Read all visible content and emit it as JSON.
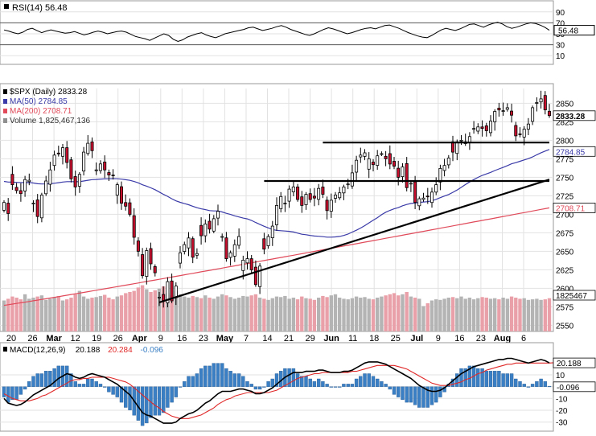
{
  "chart_data": [
    {
      "type": "line",
      "panel": "rsi",
      "legend": "RSI(14) 56.48",
      "indicator_name": "RSI(14)",
      "current_value": 56.48,
      "current_label": "56.48",
      "ylim": [
        0,
        100
      ],
      "yticks": [
        10,
        30,
        50,
        70,
        90
      ],
      "overbought": 70,
      "oversold": 30,
      "series": [
        {
          "values": [
            57,
            55,
            52,
            50,
            53,
            58,
            60,
            56,
            52,
            55,
            57,
            55,
            53,
            51,
            52,
            54,
            51,
            48,
            50,
            53,
            55,
            53,
            50,
            52,
            54,
            55,
            53,
            49,
            45,
            43,
            41,
            38,
            42,
            46,
            50,
            47,
            40,
            36,
            39,
            44,
            47,
            50,
            52,
            48,
            45,
            43,
            46,
            50,
            52,
            54,
            56,
            58,
            61,
            62,
            59,
            56,
            58,
            60,
            63,
            65,
            62,
            58,
            55,
            52,
            49,
            47,
            50,
            54,
            58,
            61,
            59,
            56,
            53,
            50,
            52,
            55,
            58,
            60,
            61,
            59,
            62,
            65,
            66,
            63,
            60,
            56,
            52,
            49,
            46,
            44,
            43,
            47,
            52,
            57,
            60,
            58,
            56,
            59,
            63,
            67,
            68,
            65,
            62,
            66,
            69,
            71,
            68,
            63,
            60,
            62,
            65,
            68,
            70,
            69,
            66,
            62,
            56.48
          ]
        }
      ]
    },
    {
      "type": "candlestick",
      "panel": "price",
      "legend": [
        {
          "label": "$SPX (Daily) 2833.28",
          "color": "#000000"
        },
        {
          "label": "MA(50) 2784.85",
          "color": "#3a3aa8"
        },
        {
          "label": "MA(200) 2708.71",
          "color": "#e04a5a"
        },
        {
          "label": "Volume 1,825,467,136",
          "color": "#8f8f8f"
        }
      ],
      "ylim": [
        2545,
        2870
      ],
      "yticks": [
        2550,
        2575,
        2600,
        2625,
        2650,
        2675,
        2700,
        2725,
        2750,
        2775,
        2800,
        2825,
        2850
      ],
      "last_price": "2833.28",
      "ma50_label": "2784.85",
      "ma200_label": "2708.71",
      "volume_label": "1825467",
      "x_tick_labels": [
        {
          "label": "20",
          "bold": false
        },
        {
          "label": "26",
          "bold": false
        },
        {
          "label": "Mar",
          "bold": true
        },
        {
          "label": "12",
          "bold": false
        },
        {
          "label": "19",
          "bold": false
        },
        {
          "label": "26",
          "bold": false
        },
        {
          "label": "Apr",
          "bold": true
        },
        {
          "label": "9",
          "bold": false
        },
        {
          "label": "16",
          "bold": false
        },
        {
          "label": "23",
          "bold": false
        },
        {
          "label": "May",
          "bold": true
        },
        {
          "label": "7",
          "bold": false
        },
        {
          "label": "14",
          "bold": false
        },
        {
          "label": "21",
          "bold": false
        },
        {
          "label": "29",
          "bold": false
        },
        {
          "label": "Jun",
          "bold": true
        },
        {
          "label": "11",
          "bold": false
        },
        {
          "label": "18",
          "bold": false
        },
        {
          "label": "25",
          "bold": false
        },
        {
          "label": "Jul",
          "bold": true
        },
        {
          "label": "9",
          "bold": false
        },
        {
          "label": "16",
          "bold": false
        },
        {
          "label": "23",
          "bold": false
        },
        {
          "label": "Aug",
          "bold": true
        },
        {
          "label": "6",
          "bold": false
        }
      ],
      "closes": [
        2716,
        2701,
        2740,
        2732,
        2728,
        2747,
        2746,
        2715,
        2697,
        2726,
        2745,
        2760,
        2780,
        2782,
        2790,
        2770,
        2748,
        2737,
        2754,
        2784,
        2796,
        2786,
        2760,
        2768,
        2760,
        2753,
        2752,
        2740,
        2715,
        2711,
        2700,
        2669,
        2650,
        2617,
        2651,
        2633,
        2621,
        2588,
        2583,
        2609,
        2583,
        2603,
        2648,
        2659,
        2668,
        2642,
        2647,
        2671,
        2687,
        2680,
        2694,
        2704,
        2670,
        2640,
        2648,
        2659,
        2670,
        2638,
        2640,
        2625,
        2605,
        2630,
        2653,
        2670,
        2684,
        2712,
        2724,
        2715,
        2734,
        2737,
        2720,
        2712,
        2727,
        2720,
        2722,
        2735,
        2727,
        2705,
        2719,
        2726,
        2729,
        2737,
        2741,
        2756,
        2773,
        2780,
        2783,
        2775,
        2767,
        2779,
        2782,
        2775,
        2768,
        2765,
        2750,
        2764,
        2736,
        2742,
        2716,
        2721,
        2722,
        2724,
        2730,
        2740,
        2762,
        2766,
        2776,
        2784,
        2798,
        2800,
        2798,
        2805,
        2816,
        2818,
        2816,
        2813,
        2826,
        2839,
        2841,
        2840,
        2844,
        2834,
        2806,
        2808,
        2815,
        2822,
        2844,
        2851,
        2856,
        2841,
        2833.28
      ],
      "volume_percent_of_max": [
        55,
        58,
        62,
        60,
        57,
        66,
        58,
        60,
        62,
        64,
        56,
        58,
        61,
        63,
        55,
        57,
        60,
        66,
        72,
        62,
        58,
        60,
        61,
        63,
        65,
        60,
        57,
        62,
        64,
        68,
        70,
        72,
        78,
        82,
        75,
        70,
        73,
        76,
        80,
        68,
        64,
        72,
        66,
        62,
        60,
        63,
        61,
        59,
        64,
        60,
        58,
        62,
        66,
        64,
        61,
        58,
        60,
        63,
        62,
        64,
        66,
        60,
        58,
        56,
        59,
        62,
        61,
        63,
        58,
        60,
        57,
        62,
        59,
        58,
        56,
        60,
        63,
        61,
        64,
        66,
        60,
        58,
        57,
        59,
        62,
        60,
        61,
        58,
        57,
        60,
        62,
        64,
        66,
        68,
        64,
        66,
        70,
        62,
        60,
        58,
        45,
        50,
        55,
        57,
        56,
        58,
        60,
        61,
        59,
        62,
        58,
        60,
        57,
        59,
        61,
        60,
        58,
        59,
        57,
        60,
        58,
        62,
        60,
        58,
        59,
        56,
        57,
        58,
        56,
        57,
        59
      ]
    },
    {
      "type": "line",
      "panel": "macd",
      "legend": [
        {
          "label": "MACD(12,26,9)",
          "color": "#000000"
        },
        {
          "label": "20.188",
          "color": "#000000"
        },
        {
          "label": "20.284",
          "color": "#e02828"
        },
        {
          "label": "-0.096",
          "color": "#3a7fc4"
        }
      ],
      "ylim": [
        -35,
        25
      ],
      "yticks": [
        -30,
        -20,
        -10,
        0,
        10
      ],
      "macd_label": "20.188",
      "histogram_label": "-0.096",
      "series": [
        {
          "name": "MACD(12,26,9)",
          "values": [
            -10,
            -14,
            -15,
            -16,
            -15,
            -13,
            -10,
            -7,
            -5,
            -3,
            -1,
            1,
            4,
            7,
            9,
            11,
            10,
            8,
            7,
            8,
            10,
            11,
            10,
            9,
            8,
            6,
            4,
            2,
            -1,
            -4,
            -7,
            -12,
            -17,
            -22,
            -24,
            -25,
            -27,
            -29,
            -31,
            -31,
            -31,
            -30,
            -27,
            -25,
            -23,
            -22,
            -20,
            -17,
            -14,
            -12,
            -9,
            -6,
            -4,
            -4,
            -4,
            -3,
            -2,
            -2,
            -3,
            -4,
            -6,
            -6,
            -5,
            -3,
            -1,
            2,
            5,
            8,
            10,
            12,
            12,
            12,
            13,
            13,
            13,
            14,
            14,
            13,
            12,
            12,
            12,
            13,
            13,
            14,
            16,
            18,
            20,
            21,
            21,
            21,
            20,
            19,
            17,
            15,
            13,
            11,
            9,
            7,
            4,
            1,
            -1,
            -3,
            -4,
            -4,
            -3,
            -1,
            2,
            5,
            8,
            11,
            13,
            15,
            17,
            18,
            19,
            20,
            21,
            22,
            23,
            23,
            24,
            24,
            23,
            22,
            21,
            20,
            21,
            22,
            23,
            22,
            20.188
          ]
        },
        {
          "name": "Signal",
          "values": [
            -6,
            -8,
            -10,
            -11,
            -12,
            -12,
            -12,
            -11,
            -10,
            -8,
            -7,
            -5,
            -3,
            -1,
            1,
            3,
            5,
            6,
            6,
            7,
            7,
            8,
            8,
            8,
            8,
            8,
            7,
            6,
            5,
            4,
            2,
            -1,
            -4,
            -7,
            -10,
            -13,
            -16,
            -18,
            -21,
            -23,
            -25,
            -26,
            -27,
            -27,
            -27,
            -26,
            -25,
            -24,
            -22,
            -20,
            -18,
            -15,
            -13,
            -11,
            -10,
            -8,
            -7,
            -6,
            -5,
            -5,
            -5,
            -5,
            -5,
            -5,
            -4,
            -3,
            -1,
            1,
            3,
            5,
            7,
            8,
            9,
            10,
            11,
            11,
            12,
            12,
            12,
            12,
            12,
            12,
            12,
            13,
            13,
            14,
            15,
            16,
            17,
            18,
            18,
            18,
            18,
            18,
            17,
            16,
            15,
            13,
            11,
            9,
            7,
            5,
            3,
            2,
            1,
            1,
            1,
            2,
            3,
            4,
            6,
            7,
            9,
            11,
            12,
            14,
            15,
            16,
            17,
            18,
            19,
            19,
            20,
            20,
            20,
            20,
            20,
            20,
            20,
            20,
            20,
            20.284
          ]
        }
      ]
    }
  ],
  "annotations": [
    {
      "type": "horizontal-line",
      "label": "resistance",
      "y": 2797,
      "x_from_bar": 76,
      "x_to_bar": 130
    },
    {
      "type": "horizontal-line",
      "label": "support",
      "y": 2745,
      "x_from_bar": 62,
      "x_to_bar": 130
    },
    {
      "type": "trendline",
      "label": "uptrend",
      "from": [
        37,
        2581
      ],
      "to": [
        130,
        2747
      ]
    }
  ],
  "colors": {
    "up_candle": "#ffffff",
    "down_candle": "#c8102e",
    "candle_outline": "#000000",
    "volume_up": "#b4b4b4",
    "volume_down": "#eaa0a8",
    "ma50": "#3a3aa8",
    "ma200": "#e04a5a",
    "rsi_line": "#000000",
    "macd_line": "#000000",
    "signal_line": "#e02828",
    "histogram": "#3a7fc4",
    "grid": "#e2e2e2"
  }
}
